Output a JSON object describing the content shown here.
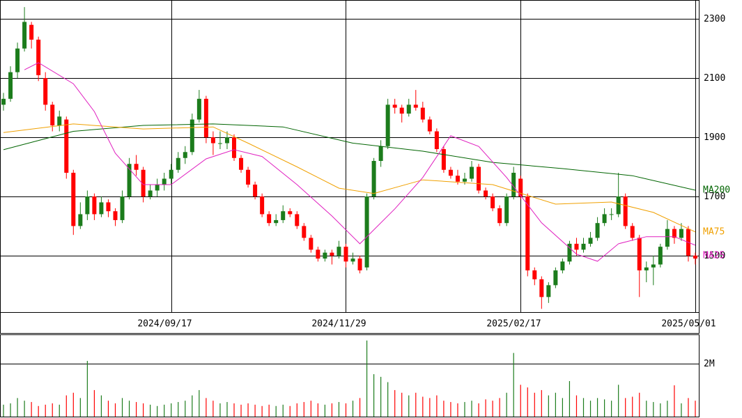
{
  "chart_data": {
    "type": "candlestick",
    "up_color": "#1c7c1c",
    "down_color": "#ff0000",
    "ylim": [
      1309,
      2364
    ],
    "yticks": [
      1500,
      1700,
      1900,
      2100,
      2300
    ],
    "grid": true,
    "xlim": [
      -0.5,
      99.5
    ],
    "xticks": [
      {
        "value": 24,
        "label": "2024/09/17"
      },
      {
        "value": 49,
        "label": "2024/11/29"
      },
      {
        "value": 74,
        "label": "2025/02/17"
      },
      {
        "value": 99,
        "label": "2025/05/01"
      }
    ],
    "candles": [
      [
        2010,
        2050,
        1990,
        2030
      ],
      [
        2030,
        2140,
        2020,
        2120
      ],
      [
        2120,
        2220,
        2100,
        2200
      ],
      [
        2200,
        2340,
        2190,
        2290
      ],
      [
        2280,
        2290,
        2200,
        2230
      ],
      [
        2230,
        2240,
        2090,
        2110
      ],
      [
        2100,
        2120,
        1990,
        2010
      ],
      [
        2010,
        2020,
        1920,
        1940
      ],
      [
        1940,
        1990,
        1920,
        1970
      ],
      [
        1960,
        1970,
        1760,
        1780
      ],
      [
        1780,
        1790,
        1570,
        1600
      ],
      [
        1600,
        1680,
        1590,
        1640
      ],
      [
        1640,
        1720,
        1620,
        1700
      ],
      [
        1700,
        1710,
        1620,
        1640
      ],
      [
        1640,
        1700,
        1630,
        1680
      ],
      [
        1680,
        1690,
        1630,
        1650
      ],
      [
        1650,
        1660,
        1600,
        1620
      ],
      [
        1620,
        1720,
        1610,
        1700
      ],
      [
        1700,
        1830,
        1690,
        1810
      ],
      [
        1810,
        1840,
        1770,
        1790
      ],
      [
        1790,
        1800,
        1680,
        1700
      ],
      [
        1700,
        1740,
        1690,
        1720
      ],
      [
        1720,
        1760,
        1700,
        1740
      ],
      [
        1740,
        1780,
        1720,
        1760
      ],
      [
        1760,
        1810,
        1740,
        1790
      ],
      [
        1790,
        1850,
        1780,
        1830
      ],
      [
        1830,
        1870,
        1810,
        1850
      ],
      [
        1850,
        1980,
        1840,
        1960
      ],
      [
        1960,
        2060,
        1950,
        2030
      ],
      [
        2030,
        2040,
        1880,
        1900
      ],
      [
        1900,
        1920,
        1840,
        1880
      ],
      [
        1880,
        1920,
        1860,
        1880
      ],
      [
        1880,
        1920,
        1860,
        1900
      ],
      [
        1900,
        1910,
        1820,
        1830
      ],
      [
        1830,
        1840,
        1780,
        1790
      ],
      [
        1790,
        1800,
        1730,
        1740
      ],
      [
        1740,
        1750,
        1690,
        1700
      ],
      [
        1700,
        1710,
        1630,
        1640
      ],
      [
        1640,
        1650,
        1600,
        1610
      ],
      [
        1610,
        1640,
        1600,
        1620
      ],
      [
        1620,
        1670,
        1610,
        1650
      ],
      [
        1650,
        1660,
        1630,
        1640
      ],
      [
        1640,
        1650,
        1590,
        1600
      ],
      [
        1600,
        1610,
        1550,
        1560
      ],
      [
        1560,
        1570,
        1510,
        1520
      ],
      [
        1520,
        1530,
        1480,
        1490
      ],
      [
        1490,
        1520,
        1480,
        1510
      ],
      [
        1510,
        1520,
        1470,
        1500
      ],
      [
        1500,
        1550,
        1490,
        1530
      ],
      [
        1530,
        1540,
        1460,
        1480
      ],
      [
        1480,
        1510,
        1470,
        1490
      ],
      [
        1490,
        1500,
        1440,
        1450
      ],
      [
        1460,
        1710,
        1450,
        1700
      ],
      [
        1700,
        1830,
        1690,
        1820
      ],
      [
        1820,
        1890,
        1800,
        1870
      ],
      [
        1870,
        2030,
        1860,
        2010
      ],
      [
        2010,
        2030,
        1980,
        2000
      ],
      [
        2000,
        2010,
        1950,
        1980
      ],
      [
        1980,
        2030,
        1970,
        2010
      ],
      [
        2010,
        2060,
        1990,
        2000
      ],
      [
        2000,
        2020,
        1950,
        1960
      ],
      [
        1960,
        1970,
        1910,
        1920
      ],
      [
        1920,
        1930,
        1850,
        1860
      ],
      [
        1860,
        1870,
        1780,
        1790
      ],
      [
        1790,
        1800,
        1760,
        1770
      ],
      [
        1770,
        1790,
        1740,
        1750
      ],
      [
        1750,
        1780,
        1740,
        1760
      ],
      [
        1760,
        1820,
        1750,
        1800
      ],
      [
        1800,
        1810,
        1710,
        1720
      ],
      [
        1720,
        1730,
        1690,
        1700
      ],
      [
        1700,
        1710,
        1650,
        1660
      ],
      [
        1660,
        1670,
        1600,
        1610
      ],
      [
        1610,
        1710,
        1600,
        1700
      ],
      [
        1700,
        1800,
        1690,
        1780
      ],
      [
        1760,
        1770,
        1690,
        1700
      ],
      [
        1700,
        1710,
        1430,
        1450
      ],
      [
        1450,
        1460,
        1400,
        1420
      ],
      [
        1420,
        1430,
        1320,
        1360
      ],
      [
        1360,
        1410,
        1340,
        1400
      ],
      [
        1400,
        1460,
        1390,
        1450
      ],
      [
        1450,
        1490,
        1440,
        1480
      ],
      [
        1480,
        1550,
        1470,
        1540
      ],
      [
        1540,
        1560,
        1500,
        1520
      ],
      [
        1520,
        1560,
        1510,
        1540
      ],
      [
        1540,
        1580,
        1530,
        1560
      ],
      [
        1560,
        1630,
        1550,
        1610
      ],
      [
        1610,
        1660,
        1600,
        1640
      ],
      [
        1640,
        1660,
        1620,
        1640
      ],
      [
        1640,
        1780,
        1630,
        1700
      ],
      [
        1700,
        1710,
        1590,
        1600
      ],
      [
        1600,
        1610,
        1550,
        1560
      ],
      [
        1560,
        1570,
        1360,
        1450
      ],
      [
        1450,
        1480,
        1410,
        1460
      ],
      [
        1460,
        1500,
        1400,
        1470
      ],
      [
        1470,
        1540,
        1460,
        1530
      ],
      [
        1530,
        1620,
        1520,
        1590
      ],
      [
        1590,
        1600,
        1540,
        1560
      ],
      [
        1560,
        1610,
        1550,
        1590
      ],
      [
        1590,
        1600,
        1480,
        1500
      ],
      [
        1500,
        1510,
        1470,
        1490
      ]
    ],
    "ma_series": [
      {
        "name": "MA200",
        "color": "#006400",
        "x": [
          0,
          10,
          20,
          30,
          40,
          50,
          60,
          70,
          80,
          90,
          99
        ],
        "values": [
          1858,
          1920,
          1940,
          1945,
          1935,
          1880,
          1853,
          1815,
          1794,
          1770,
          1721
        ]
      },
      {
        "name": "MA75",
        "color": "#f0a000",
        "x": [
          0,
          10,
          20,
          30,
          35,
          42,
          48,
          53,
          60,
          70,
          79,
          87,
          93,
          99
        ],
        "values": [
          1916,
          1945,
          1928,
          1935,
          1880,
          1800,
          1728,
          1710,
          1756,
          1740,
          1674,
          1681,
          1646,
          1580
        ]
      },
      {
        "name": "MA25",
        "color": "#e020c0",
        "x": [
          3,
          5,
          10,
          13,
          16,
          20,
          24,
          29,
          33,
          37,
          42,
          47,
          51,
          56,
          60,
          64,
          68,
          72,
          77,
          82,
          85,
          88,
          92,
          96,
          99
        ],
        "values": [
          2128,
          2152,
          2081,
          1987,
          1846,
          1740,
          1740,
          1827,
          1858,
          1835,
          1740,
          1634,
          1540,
          1658,
          1764,
          1905,
          1869,
          1764,
          1611,
          1505,
          1481,
          1540,
          1564,
          1564,
          1535
        ]
      }
    ],
    "volume": {
      "ylim": [
        0,
        3100000
      ],
      "yticks": [
        {
          "value": 2000000,
          "label": "2M"
        }
      ],
      "values": [
        450000,
        500000,
        700000,
        600000,
        550000,
        400000,
        450000,
        500000,
        450000,
        800000,
        900000,
        700000,
        2100000,
        1000000,
        800000,
        600000,
        500000,
        700000,
        600000,
        550000,
        500000,
        450000,
        400000,
        450000,
        500000,
        550000,
        600000,
        800000,
        1000000,
        700000,
        600000,
        500000,
        550000,
        500000,
        450000,
        500000,
        450000,
        400000,
        450000,
        400000,
        450000,
        400000,
        500000,
        550000,
        600000,
        500000,
        450000,
        500000,
        550000,
        500000,
        600000,
        700000,
        2870000,
        1600000,
        1500000,
        1300000,
        1000000,
        900000,
        800000,
        900000,
        750000,
        700000,
        800000,
        600000,
        550000,
        500000,
        550000,
        600000,
        500000,
        650000,
        600000,
        700000,
        900000,
        2400000,
        1200000,
        1100000,
        900000,
        1000000,
        800000,
        900000,
        700000,
        1340000,
        800000,
        700000,
        600000,
        700000,
        650000,
        600000,
        1200000,
        700000,
        750000,
        900000,
        600000,
        550000,
        500000,
        600000,
        1180000,
        500000,
        700000,
        600000
      ]
    }
  }
}
